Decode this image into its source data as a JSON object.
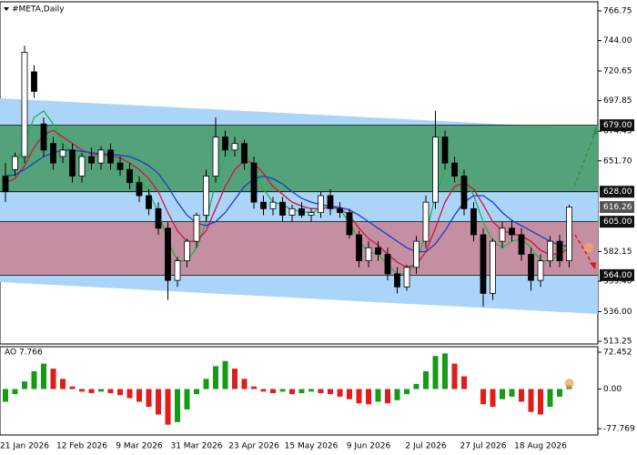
{
  "chart_data": [
    {
      "type": "candlestick",
      "title": "#META,Daily",
      "categories": [
        null,
        null,
        "21 Jan 2026",
        null,
        null,
        null,
        null,
        null,
        "12 Feb 2026",
        null,
        null,
        null,
        null,
        null,
        "9 Mar 2026",
        null,
        null,
        null,
        null,
        null,
        "31 Mar 2026",
        null,
        null,
        null,
        null,
        null,
        "23 Apr 2026",
        null,
        null,
        null,
        null,
        null,
        "15 May 2026",
        null,
        null,
        null,
        null,
        null,
        "9 Jun 2026",
        null,
        null,
        null,
        null,
        null,
        "2 Jul 2026",
        null,
        null,
        null,
        null,
        null,
        "27 Jul 2026",
        null,
        null,
        null,
        null,
        null,
        "18 Aug 2026",
        null,
        null,
        null
      ],
      "open": [
        640,
        645,
        655,
        720,
        680,
        665,
        655,
        660,
        640,
        655,
        650,
        660,
        650,
        645,
        635,
        625,
        615,
        600,
        560,
        575,
        590,
        610,
        640,
        670,
        660,
        665,
        650,
        620,
        615,
        620,
        610,
        615,
        610,
        612,
        625,
        615,
        612,
        595,
        575,
        585,
        580,
        565,
        555,
        570,
        590,
        620,
        670,
        650,
        640,
        615,
        595,
        550,
        590,
        600,
        595,
        580,
        560,
        575,
        590,
        575
      ],
      "high": [
        650,
        658,
        740,
        725,
        685,
        670,
        665,
        665,
        658,
        662,
        663,
        665,
        655,
        650,
        640,
        630,
        620,
        605,
        578,
        592,
        612,
        645,
        685,
        675,
        670,
        668,
        655,
        625,
        624,
        624,
        618,
        620,
        615,
        628,
        630,
        620,
        615,
        598,
        590,
        590,
        585,
        570,
        572,
        594,
        625,
        690,
        675,
        655,
        645,
        620,
        600,
        592,
        605,
        606,
        600,
        585,
        580,
        594,
        595,
        618
      ],
      "low": [
        620,
        640,
        650,
        700,
        655,
        645,
        650,
        635,
        635,
        645,
        645,
        645,
        640,
        630,
        620,
        610,
        595,
        545,
        555,
        570,
        585,
        605,
        635,
        655,
        655,
        645,
        615,
        610,
        610,
        605,
        605,
        608,
        605,
        608,
        610,
        608,
        592,
        570,
        570,
        575,
        560,
        550,
        552,
        565,
        585,
        615,
        645,
        635,
        610,
        590,
        540,
        545,
        585,
        590,
        575,
        552,
        555,
        570,
        570,
        570
      ],
      "close": [
        628,
        655,
        735,
        705,
        660,
        650,
        660,
        640,
        655,
        650,
        660,
        650,
        645,
        635,
        625,
        615,
        600,
        560,
        575,
        590,
        610,
        640,
        670,
        660,
        665,
        650,
        620,
        615,
        620,
        610,
        615,
        610,
        612,
        625,
        615,
        612,
        595,
        575,
        585,
        580,
        565,
        555,
        570,
        590,
        620,
        670,
        650,
        640,
        615,
        595,
        550,
        590,
        600,
        595,
        580,
        560,
        575,
        590,
        575,
        616.26
      ],
      "up_color": "#ffffff",
      "down_color": "#000000",
      "wick_color": "#000000",
      "series": [
        {
          "color": "#22b14c",
          "values": [
            640,
            645,
            665,
            685,
            690,
            680,
            665,
            658,
            652,
            653,
            655,
            655,
            650,
            645,
            638,
            628,
            612,
            590,
            575,
            575,
            585,
            605,
            635,
            655,
            662,
            660,
            645,
            630,
            620,
            618,
            614,
            613,
            612,
            615,
            617,
            614,
            605,
            590,
            582,
            580,
            572,
            565,
            565,
            575,
            595,
            625,
            645,
            648,
            640,
            625,
            605,
            590,
            585,
            590,
            592,
            585,
            575,
            575,
            580,
            590
          ]
        },
        {
          "color": "#d2143c",
          "values": [
            635,
            638,
            648,
            662,
            672,
            675,
            670,
            665,
            660,
            657,
            656,
            656,
            654,
            650,
            645,
            638,
            628,
            612,
            598,
            590,
            590,
            598,
            615,
            632,
            645,
            652,
            650,
            642,
            632,
            626,
            620,
            617,
            615,
            615,
            616,
            615,
            610,
            600,
            592,
            587,
            580,
            574,
            570,
            572,
            582,
            600,
            620,
            632,
            635,
            630,
            618,
            605,
            598,
            596,
            594,
            590,
            583,
            580,
            580,
            585
          ]
        },
        {
          "color": "#1e3cc8",
          "values": [
            640,
            641,
            645,
            650,
            655,
            658,
            660,
            660,
            659,
            658,
            657,
            657,
            656,
            655,
            652,
            648,
            642,
            632,
            620,
            610,
            604,
            602,
            605,
            612,
            622,
            632,
            638,
            640,
            638,
            634,
            628,
            623,
            620,
            618,
            617,
            616,
            614,
            610,
            605,
            600,
            595,
            590,
            585,
            582,
            582,
            588,
            598,
            610,
            620,
            625,
            625,
            620,
            612,
            606,
            602,
            598,
            594,
            590,
            587,
            586
          ]
        }
      ],
      "channel": {
        "upper": [
          699.7,
          676.0
        ],
        "lower": [
          558.7,
          534.2
        ],
        "color": "#aad5f8"
      },
      "zones": [
        {
          "top": {
            "value": 679,
            "label": "679.00"
          },
          "bottom": {
            "value": 628,
            "label": "628.00"
          },
          "color": "#4f9f73"
        },
        {
          "top": {
            "value": 605,
            "label": "605.00"
          },
          "bottom": {
            "value": 564,
            "label": "564.00"
          },
          "color": "#c58b9d"
        }
      ],
      "last_price": {
        "value": 616.26,
        "label": "616.26"
      },
      "ylim": [
        511.2,
        773.7
      ],
      "yticks": [
        766.75,
        {
          "value": 744,
          "label": "744.00"
        },
        720.65,
        697.85,
        674.45,
        {
          "value": 651.7,
          "label": "651.70"
        },
        582.15,
        {
          "value": 559.4,
          "label": "559.40"
        },
        {
          "value": 536,
          "label": "536.00"
        },
        513.25
      ]
    },
    {
      "type": "bar",
      "title": "AO 7.766",
      "values": [
        -25,
        -10,
        15,
        35,
        50,
        40,
        20,
        5,
        -5,
        -8,
        -5,
        -8,
        -12,
        -18,
        -25,
        -35,
        -50,
        -70,
        -65,
        -40,
        -10,
        20,
        45,
        55,
        40,
        20,
        5,
        -5,
        -8,
        -5,
        -10,
        -8,
        -5,
        -8,
        -10,
        -15,
        -20,
        -28,
        -30,
        -25,
        -28,
        -22,
        -10,
        10,
        35,
        65,
        70,
        50,
        25,
        0,
        -30,
        -35,
        -20,
        -15,
        -25,
        -45,
        -50,
        -35,
        -15,
        7.766
      ],
      "up_color": "#169b16",
      "down_color": "#e31b1b",
      "ylim": [
        -90.3,
        83.2
      ],
      "yticks": [
        72.452,
        {
          "value": 0,
          "label": "0.00"
        },
        -77.769
      ]
    }
  ]
}
